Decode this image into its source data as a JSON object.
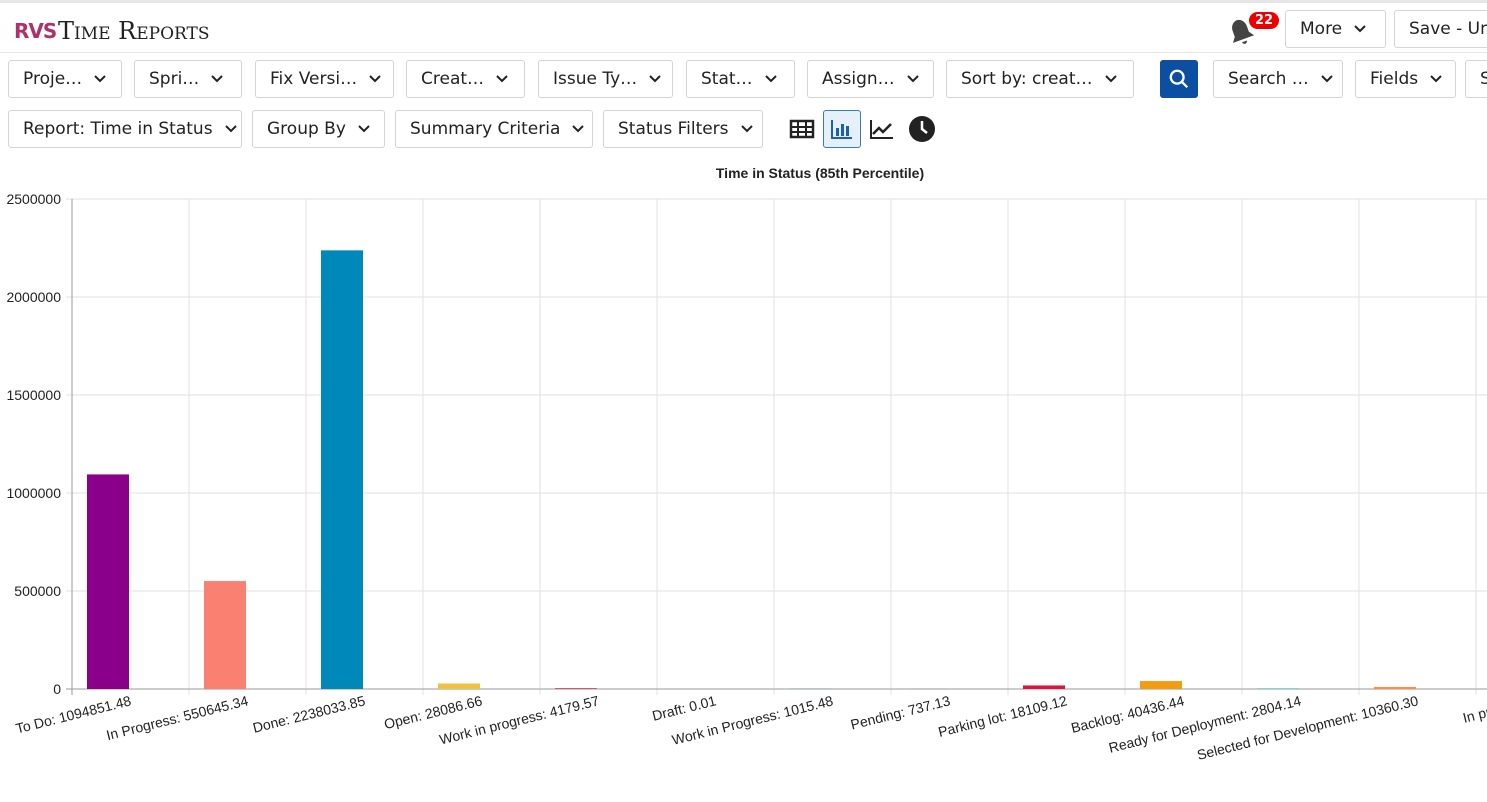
{
  "header": {
    "logo": "RVS",
    "title": "Time Reports",
    "notifications": "22",
    "buttons": [
      "More",
      "Save - Unt"
    ]
  },
  "filters": [
    "Proje…",
    "Spri…",
    "Fix Versi…",
    "Creat…",
    "Issue Ty…",
    "Stat…",
    "Assign…",
    "Sort by: creat…"
  ],
  "search_filters": [
    "Search …",
    "Fields",
    "S"
  ],
  "report_controls": [
    "Report: Time in Status",
    "Group By",
    "Summary Criteria",
    "Status Filters"
  ],
  "chart_data": {
    "type": "bar",
    "title": "Time in Status (85th Percentile)",
    "categories": [
      "To Do: 1094851.48",
      "In Progress: 550645.34",
      "Done: 2238033.85",
      "Open: 28086.66",
      "Work in progress: 4179.57",
      "Draft: 0.01",
      "Work in Progress: 1015.48",
      "Pending: 737.13",
      "Parking lot: 18109.12",
      "Backlog: 40436.44",
      "Ready for Deployment: 2804.14",
      "Selected for Development: 10360.30",
      "In progress:"
    ],
    "values": [
      1094851.48,
      550645.34,
      2238033.85,
      28086.66,
      4179.57,
      0.01,
      1015.48,
      737.13,
      18109.12,
      40436.44,
      2804.14,
      10360.3,
      null
    ],
    "colors": [
      "#8b008b",
      "#fa8072",
      "#0088bb",
      "#f4c040",
      "#cc3344",
      "#6a5acd",
      "#2e8b57",
      "#4682b4",
      "#dc143c",
      "#f39c12",
      "#20b2aa",
      "#ff8c40",
      "#999999"
    ],
    "ylim": [
      0,
      2500000
    ],
    "yticks": [
      0,
      500000,
      1000000,
      1500000,
      2000000,
      2500000
    ],
    "grid": true
  }
}
